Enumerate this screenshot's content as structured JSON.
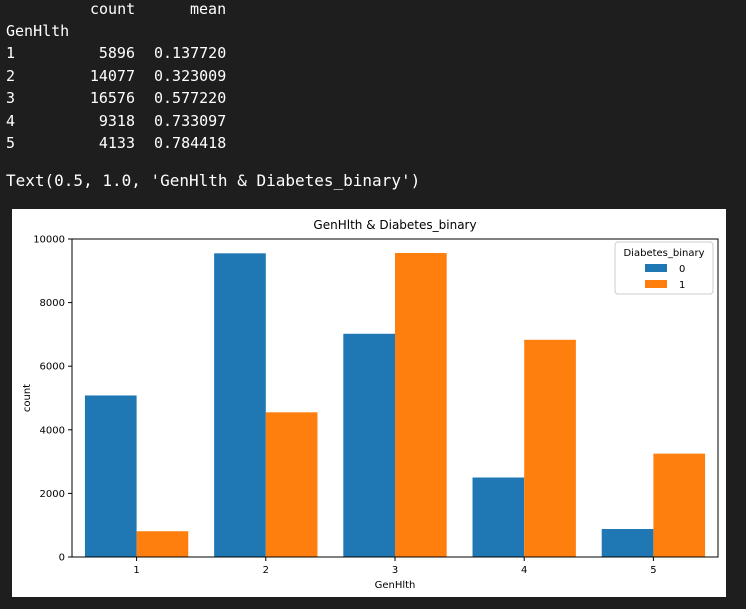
{
  "dataframe": {
    "columns": [
      "count",
      "mean"
    ],
    "index_name": "GenHlth",
    "rows": [
      {
        "index": "1",
        "count": "5896",
        "mean": "0.137720"
      },
      {
        "index": "2",
        "count": "14077",
        "mean": "0.323009"
      },
      {
        "index": "3",
        "count": "16576",
        "mean": "0.577220"
      },
      {
        "index": "4",
        "count": "9318",
        "mean": "0.733097"
      },
      {
        "index": "5",
        "count": "4133",
        "mean": "0.784418"
      }
    ]
  },
  "output_text": "Text(0.5, 1.0, 'GenHlth & Diabetes_binary')",
  "chart_data": {
    "type": "bar",
    "title": "GenHlth & Diabetes_binary",
    "xlabel": "GenHlth",
    "ylabel": "count",
    "categories": [
      "1",
      "2",
      "3",
      "4",
      "5"
    ],
    "series": [
      {
        "name": "0",
        "values": [
          5080,
          9550,
          7020,
          2500,
          880
        ],
        "color": "#1f77b4"
      },
      {
        "name": "1",
        "values": [
          810,
          4550,
          9560,
          6830,
          3250
        ],
        "color": "#ff7f0e"
      }
    ],
    "ylim": [
      0,
      10000
    ],
    "yticks": [
      0,
      2000,
      4000,
      6000,
      8000,
      10000
    ],
    "legend": {
      "title": "Diabetes_binary",
      "placement": "top-right"
    },
    "grid": false
  }
}
